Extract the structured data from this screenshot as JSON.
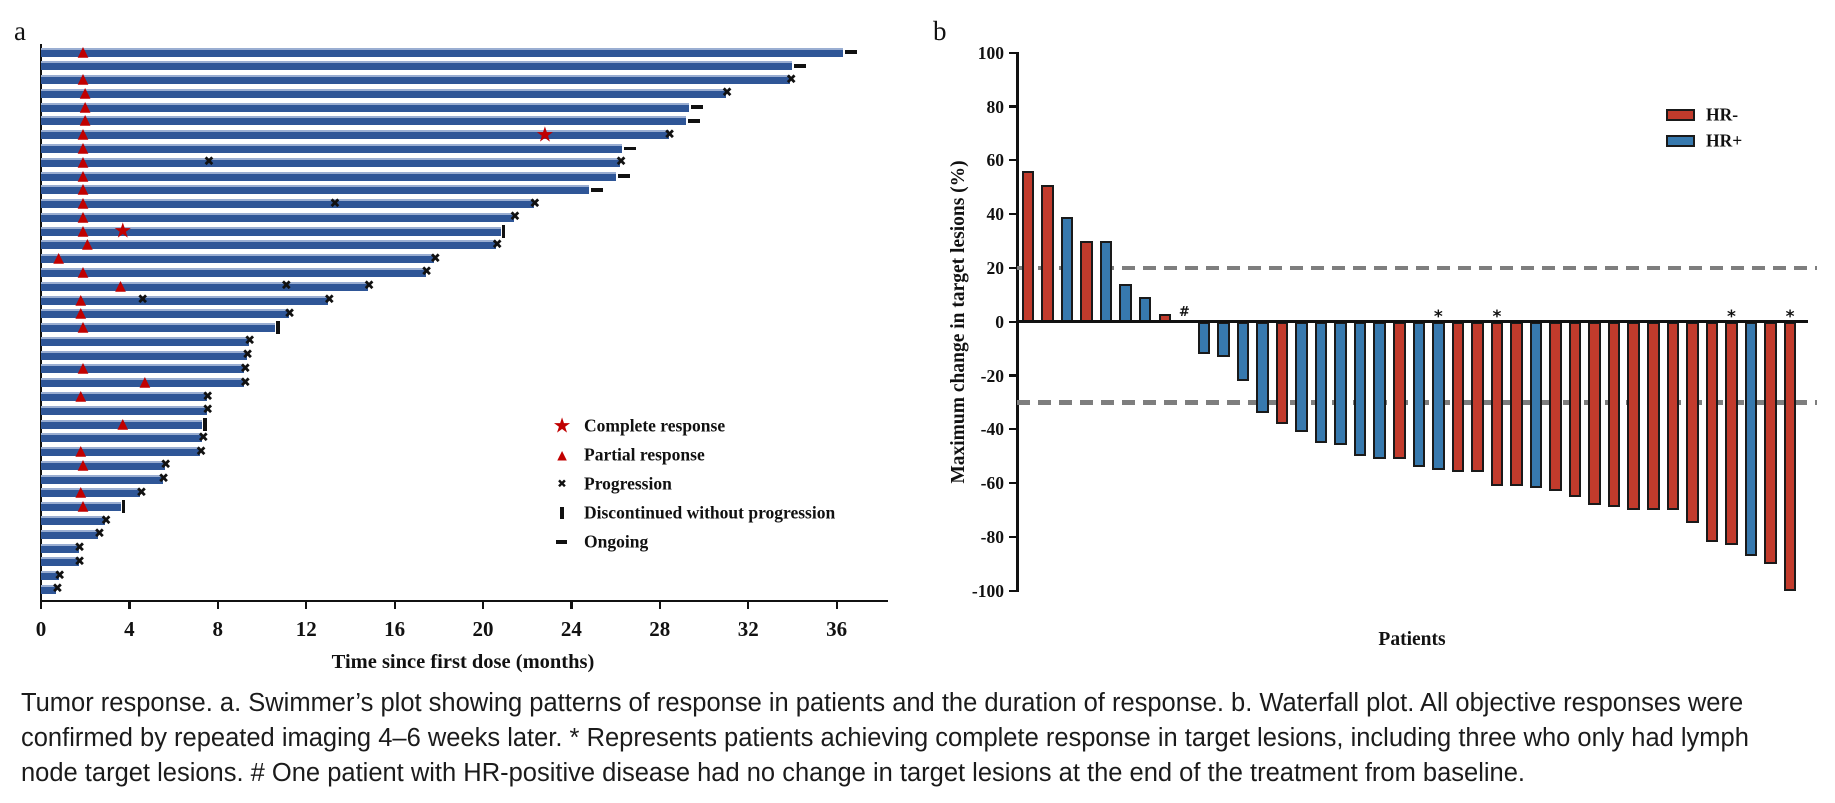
{
  "figure": {
    "panel_a_label": "a",
    "panel_b_label": "b"
  },
  "caption": {
    "lines": [
      "Tumor response. a. Swimmer’s plot showing patterns of response in patients and the duration of response. b. Waterfall plot. All objective responses were",
      "confirmed by repeated imaging 4–6 weeks later. * Represents patients achieving complete response in target lesions, including three who only had lymph",
      "node target lesions. # One patient with HR-positive disease had no change in target lesions at the end of the treatment from baseline."
    ]
  },
  "chart_data": [
    {
      "type": "swimmer",
      "panel": "a",
      "xlabel": "Time since first dose (months)",
      "xlim": [
        0,
        38
      ],
      "xticks": [
        0,
        4,
        8,
        12,
        16,
        20,
        24,
        28,
        32,
        36
      ],
      "bar_color": "#2F5697",
      "marker_color": "#C00000",
      "legend": [
        {
          "symbol": "star",
          "label": "Complete response"
        },
        {
          "symbol": "triangle",
          "label": "Partial response"
        },
        {
          "symbol": "x",
          "label": "Progression"
        },
        {
          "symbol": "vbar",
          "label": "Discontinued without progression"
        },
        {
          "symbol": "dash",
          "label": "Ongoing"
        }
      ],
      "patients": [
        {
          "duration_months": 36.3,
          "end": "ongoing",
          "markers": [
            {
              "type": "partial_response",
              "month": 1.9
            }
          ]
        },
        {
          "duration_months": 34.0,
          "end": "ongoing",
          "markers": []
        },
        {
          "duration_months": 33.9,
          "end": "progression",
          "markers": [
            {
              "type": "partial_response",
              "month": 1.9
            }
          ]
        },
        {
          "duration_months": 31.0,
          "end": "progression",
          "markers": [
            {
              "type": "partial_response",
              "month": 2.0
            }
          ]
        },
        {
          "duration_months": 29.3,
          "end": "ongoing",
          "markers": [
            {
              "type": "partial_response",
              "month": 2.0
            }
          ]
        },
        {
          "duration_months": 29.2,
          "end": "ongoing",
          "markers": [
            {
              "type": "partial_response",
              "month": 2.0
            }
          ]
        },
        {
          "duration_months": 28.4,
          "end": "progression",
          "markers": [
            {
              "type": "partial_response",
              "month": 1.9
            },
            {
              "type": "complete_response",
              "month": 22.8
            }
          ]
        },
        {
          "duration_months": 26.3,
          "end": "ongoing",
          "markers": [
            {
              "type": "partial_response",
              "month": 1.9
            }
          ]
        },
        {
          "duration_months": 26.2,
          "end": "progression",
          "markers": [
            {
              "type": "partial_response",
              "month": 1.9
            },
            {
              "type": "progression",
              "month": 7.6
            }
          ]
        },
        {
          "duration_months": 26.0,
          "end": "ongoing",
          "markers": [
            {
              "type": "partial_response",
              "month": 1.9
            }
          ]
        },
        {
          "duration_months": 24.8,
          "end": "ongoing",
          "markers": [
            {
              "type": "partial_response",
              "month": 1.9
            }
          ]
        },
        {
          "duration_months": 22.3,
          "end": "progression",
          "markers": [
            {
              "type": "partial_response",
              "month": 1.9
            },
            {
              "type": "progression",
              "month": 13.3
            }
          ]
        },
        {
          "duration_months": 21.4,
          "end": "progression",
          "markers": [
            {
              "type": "partial_response",
              "month": 1.9
            }
          ]
        },
        {
          "duration_months": 20.8,
          "end": "discontinued",
          "markers": [
            {
              "type": "partial_response",
              "month": 1.9
            },
            {
              "type": "complete_response",
              "month": 3.7
            }
          ]
        },
        {
          "duration_months": 20.6,
          "end": "progression",
          "markers": [
            {
              "type": "partial_response",
              "month": 2.1
            }
          ]
        },
        {
          "duration_months": 17.8,
          "end": "progression",
          "markers": [
            {
              "type": "partial_response",
              "month": 0.8
            }
          ]
        },
        {
          "duration_months": 17.4,
          "end": "progression",
          "markers": [
            {
              "type": "partial_response",
              "month": 1.9
            }
          ]
        },
        {
          "duration_months": 14.8,
          "end": "progression",
          "markers": [
            {
              "type": "partial_response",
              "month": 3.6
            },
            {
              "type": "progression",
              "month": 11.1
            }
          ]
        },
        {
          "duration_months": 13.0,
          "end": "progression",
          "markers": [
            {
              "type": "partial_response",
              "month": 1.8
            },
            {
              "type": "progression",
              "month": 4.6
            }
          ]
        },
        {
          "duration_months": 11.2,
          "end": "progression",
          "markers": [
            {
              "type": "partial_response",
              "month": 1.8
            }
          ]
        },
        {
          "duration_months": 10.6,
          "end": "discontinued",
          "markers": [
            {
              "type": "partial_response",
              "month": 1.9
            }
          ]
        },
        {
          "duration_months": 9.4,
          "end": "progression",
          "markers": []
        },
        {
          "duration_months": 9.3,
          "end": "progression",
          "markers": []
        },
        {
          "duration_months": 9.2,
          "end": "progression",
          "markers": [
            {
              "type": "partial_response",
              "month": 1.9
            }
          ]
        },
        {
          "duration_months": 9.2,
          "end": "progression",
          "markers": [
            {
              "type": "partial_response",
              "month": 4.7
            }
          ]
        },
        {
          "duration_months": 7.5,
          "end": "progression",
          "markers": [
            {
              "type": "partial_response",
              "month": 1.8
            }
          ]
        },
        {
          "duration_months": 7.5,
          "end": "progression",
          "markers": []
        },
        {
          "duration_months": 7.3,
          "end": "discontinued",
          "markers": [
            {
              "type": "partial_response",
              "month": 3.7
            }
          ]
        },
        {
          "duration_months": 7.3,
          "end": "progression",
          "markers": []
        },
        {
          "duration_months": 7.2,
          "end": "progression",
          "markers": [
            {
              "type": "partial_response",
              "month": 1.8
            }
          ]
        },
        {
          "duration_months": 5.6,
          "end": "progression",
          "markers": [
            {
              "type": "partial_response",
              "month": 1.9
            }
          ]
        },
        {
          "duration_months": 5.5,
          "end": "progression",
          "markers": []
        },
        {
          "duration_months": 4.5,
          "end": "progression",
          "markers": [
            {
              "type": "partial_response",
              "month": 1.8
            }
          ]
        },
        {
          "duration_months": 3.6,
          "end": "discontinued",
          "markers": [
            {
              "type": "partial_response",
              "month": 1.9
            }
          ]
        },
        {
          "duration_months": 2.9,
          "end": "progression",
          "markers": []
        },
        {
          "duration_months": 2.6,
          "end": "progression",
          "markers": []
        },
        {
          "duration_months": 1.7,
          "end": "progression",
          "markers": []
        },
        {
          "duration_months": 1.7,
          "end": "progression",
          "markers": []
        },
        {
          "duration_months": 0.8,
          "end": "progression",
          "markers": []
        },
        {
          "duration_months": 0.7,
          "end": "progression",
          "markers": []
        }
      ]
    },
    {
      "type": "bar",
      "panel": "b",
      "xlabel": "Patients",
      "ylabel": "Maximum change in target lesions (%)",
      "ylim": [
        -100,
        100
      ],
      "yticks": [
        100,
        80,
        60,
        40,
        20,
        0,
        -20,
        -40,
        -60,
        -80,
        -100
      ],
      "reference_lines": [
        20,
        -30
      ],
      "legend": [
        {
          "label": "HR-",
          "color": "#C23B2C"
        },
        {
          "label": "HR+",
          "color": "#3779AE"
        }
      ],
      "series": [
        {
          "name": "Maximum change in target lesions (%)",
          "values": [
            56,
            51,
            39,
            30,
            30,
            14,
            9,
            3,
            0,
            -12,
            -13,
            -22,
            -34,
            -38,
            -41,
            -45,
            -46,
            -50,
            -51,
            -51,
            -54,
            -55,
            -56,
            -56,
            -61,
            -61,
            -62,
            -63,
            -65,
            -68,
            -69,
            -70,
            -70,
            -70,
            -75,
            -82,
            -83,
            -87,
            -90,
            -100
          ]
        }
      ],
      "groups": [
        "HR-",
        "HR-",
        "HR+",
        "HR-",
        "HR+",
        "HR+",
        "HR+",
        "HR-",
        "HR+",
        "HR+",
        "HR+",
        "HR+",
        "HR+",
        "HR-",
        "HR+",
        "HR+",
        "HR+",
        "HR+",
        "HR+",
        "HR-",
        "HR+",
        "HR+",
        "HR-",
        "HR-",
        "HR-",
        "HR-",
        "HR+",
        "HR-",
        "HR-",
        "HR-",
        "HR-",
        "HR-",
        "HR-",
        "HR-",
        "HR-",
        "HR-",
        "HR-",
        "HR+",
        "HR-",
        "HR-"
      ],
      "annotations": [
        {
          "patient": 9,
          "symbol": "#"
        },
        {
          "patient": 22,
          "symbol": "*"
        },
        {
          "patient": 25,
          "symbol": "*"
        },
        {
          "patient": 37,
          "symbol": "*"
        },
        {
          "patient": 40,
          "symbol": "*"
        }
      ]
    }
  ]
}
